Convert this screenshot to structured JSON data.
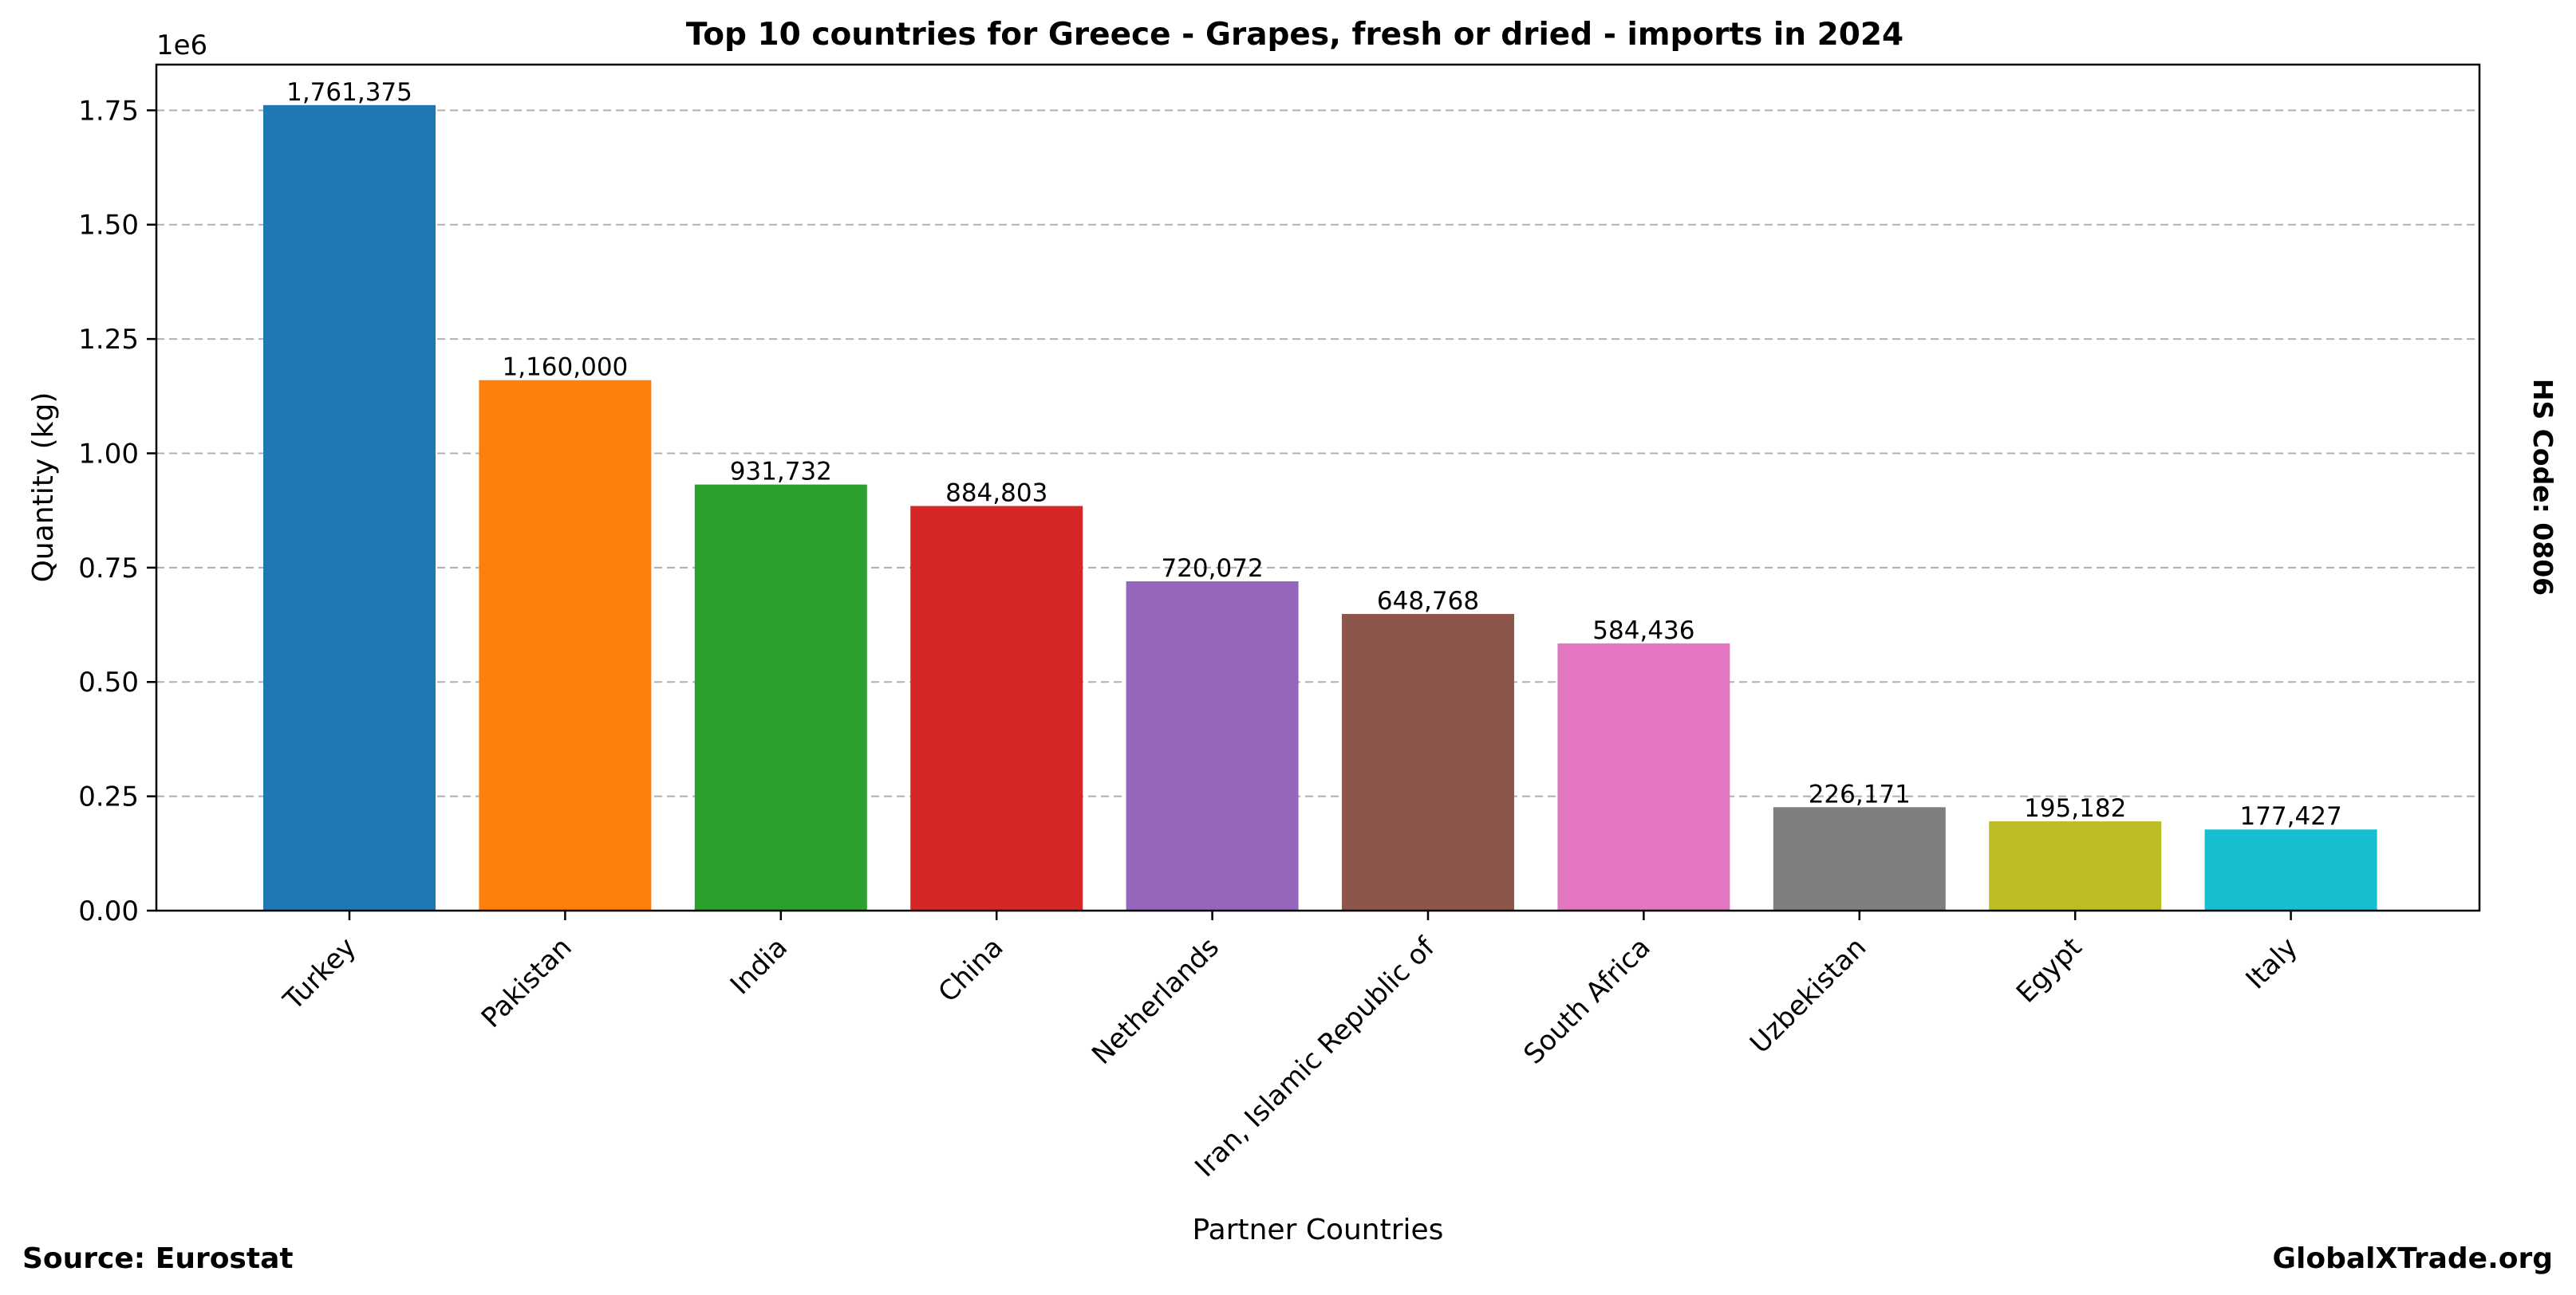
{
  "chart_data": {
    "type": "bar",
    "title": "Top 10 countries for Greece - Grapes, fresh or dried - imports in 2024",
    "xlabel": "Partner Countries",
    "ylabel": "Quantity (kg)",
    "y_multiplier_label": "1e6",
    "ylim": [
      0,
      1850000
    ],
    "yticks": [
      0,
      250000,
      500000,
      750000,
      1000000,
      1250000,
      1500000,
      1750000
    ],
    "ytick_labels": [
      "0.00",
      "0.25",
      "0.50",
      "0.75",
      "1.00",
      "1.25",
      "1.50",
      "1.75"
    ],
    "grid": "horizontal dashed",
    "categories": [
      "Turkey",
      "Pakistan",
      "India",
      "China",
      "Netherlands",
      "Iran, Islamic Republic of",
      "South Africa",
      "Uzbekistan",
      "Egypt",
      "Italy"
    ],
    "values": [
      1761375,
      1160000,
      931732,
      884803,
      720072,
      648768,
      584436,
      226171,
      195182,
      177427
    ],
    "value_labels": [
      "1,761,375",
      "1,160,000",
      "931,732",
      "884,803",
      "720,072",
      "648,768",
      "584,436",
      "226,171",
      "195,182",
      "177,427"
    ],
    "colors": [
      "#1f77b4",
      "#ff7f0e",
      "#2ca02c",
      "#d62728",
      "#9467bd",
      "#8c564b",
      "#e377c2",
      "#7f7f7f",
      "#bcbd22",
      "#17becf"
    ]
  },
  "footer": {
    "source": "Source: Eurostat",
    "brand": "GlobalXTrade.org",
    "hs_code": "HS Code: 0806"
  }
}
